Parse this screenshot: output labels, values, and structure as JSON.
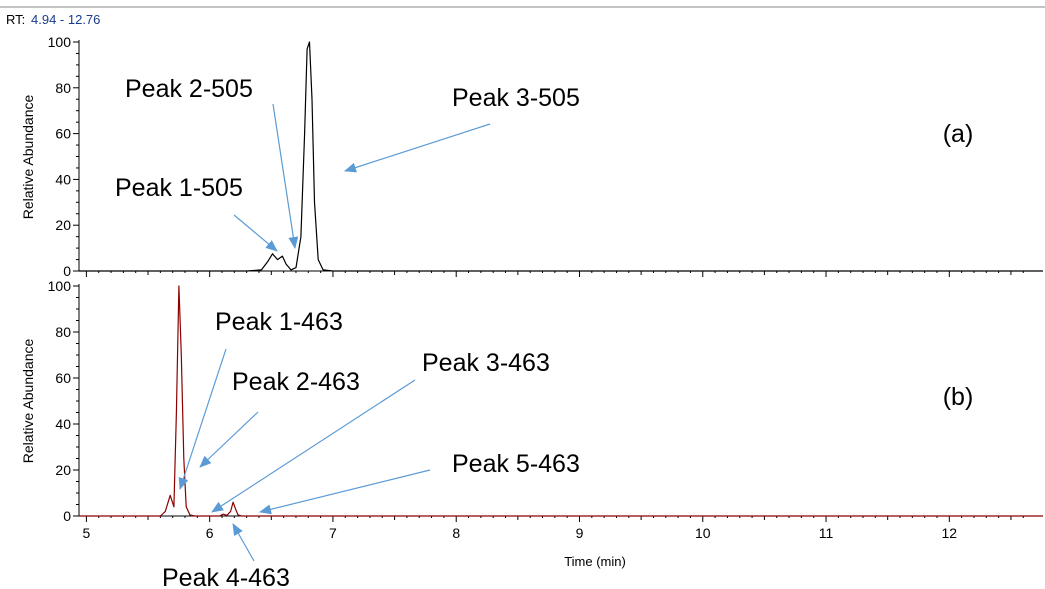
{
  "header": {
    "rt_label": "RT:",
    "rt_range": "4.94 - 12.76"
  },
  "colors": {
    "trace_a": "#000000",
    "trace_b": "#8b0000",
    "arrow": "#5b9bd5",
    "rt_range": "#1a3c8c"
  },
  "chart_data": [
    {
      "type": "line",
      "panel_label": "(a)",
      "ylabel": "Relative Abundance",
      "xlim": [
        4.94,
        12.76
      ],
      "ylim": [
        0,
        100
      ],
      "yticks": [
        "0",
        "20",
        "40",
        "60",
        "80",
        "100"
      ],
      "series": [
        {
          "x": [
            4.94,
            6.3,
            6.42,
            6.47,
            6.51,
            6.55,
            6.59,
            6.62,
            6.66,
            6.7,
            6.74,
            6.77,
            6.79,
            6.81,
            6.83,
            6.85,
            6.88,
            6.92,
            7.0,
            12.76
          ],
          "y": [
            0,
            0,
            0.5,
            4,
            7.5,
            5,
            6.5,
            3,
            0.5,
            1.5,
            15,
            60,
            97,
            100,
            75,
            30,
            5,
            0.5,
            0,
            0
          ]
        }
      ],
      "annotations": [
        {
          "text": "Peak 1-505",
          "x": 6.45,
          "y": 8
        },
        {
          "text": "Peak 2-505",
          "x": 6.57,
          "y": 9
        },
        {
          "text": "Peak 3-505",
          "x": 6.85,
          "y": 42
        }
      ]
    },
    {
      "type": "line",
      "panel_label": "(b)",
      "ylabel": "Relative Abundance",
      "xlabel": "Time (min)",
      "xlim": [
        4.94,
        12.76
      ],
      "ylim": [
        0,
        100
      ],
      "xticks": [
        "5",
        "6",
        "7",
        "8",
        "9",
        "10",
        "11",
        "12"
      ],
      "yticks": [
        "0",
        "20",
        "40",
        "60",
        "80",
        "100"
      ],
      "series": [
        {
          "x": [
            4.94,
            5.6,
            5.64,
            5.68,
            5.71,
            5.73,
            5.75,
            5.77,
            5.79,
            5.81,
            5.84,
            5.88,
            6.08,
            6.11,
            6.14,
            6.17,
            6.19,
            6.21,
            6.23,
            6.26,
            6.4,
            12.76
          ],
          "y": [
            0,
            0,
            2,
            9,
            4,
            45,
            100,
            70,
            25,
            4,
            0.5,
            0,
            0,
            0.8,
            0.3,
            2,
            6,
            3,
            0.5,
            0,
            0,
            0
          ]
        }
      ],
      "annotations": [
        {
          "text": "Peak 1-463",
          "x": 5.68,
          "y": 10
        },
        {
          "text": "Peak 2-463",
          "x": 5.8,
          "y": 20
        },
        {
          "text": "Peak 3-463",
          "x": 5.92,
          "y": 2
        },
        {
          "text": "Peak 4-463",
          "x": 6.1,
          "y": 0
        },
        {
          "text": "Peak 5-463",
          "x": 6.25,
          "y": 2
        }
      ]
    }
  ]
}
